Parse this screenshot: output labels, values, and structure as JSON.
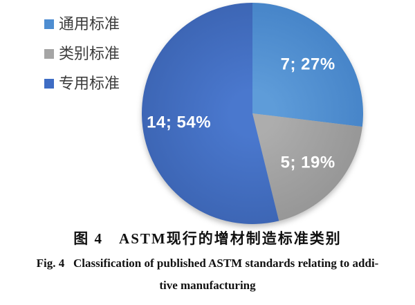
{
  "chart_data": {
    "type": "pie",
    "title": "图 4　ASTM现行的增材制造标准类别",
    "legend_position": "top-left",
    "start_angle_deg": -90,
    "direction": "clockwise",
    "label_text_color": "#FFFFFF",
    "slices": [
      {
        "label": "通用标准",
        "value": 7,
        "percent": 27,
        "data_label": "7; 27%",
        "color": "#4E8DD1",
        "color_inner": "#5E9CD9",
        "color_outer": "#4785C9"
      },
      {
        "label": "类别标准",
        "value": 5,
        "percent": 19,
        "data_label": "5; 19%",
        "color": "#A5A5A5",
        "color_inner": "#ADADAD",
        "color_outer": "#979797"
      },
      {
        "label": "专用标准",
        "value": 14,
        "percent": 54,
        "data_label": "14; 54%",
        "color": "#3E6CC4",
        "color_inner": "#4A78CE",
        "color_outer": "#3D66B5"
      }
    ]
  },
  "caption": {
    "line_cn": "图 4　ASTM现行的增材制造标准类别",
    "line_en_1": "Fig. 4   Classification of published ASTM standards relating to addi-",
    "line_en_2": "tive manufacturing"
  }
}
